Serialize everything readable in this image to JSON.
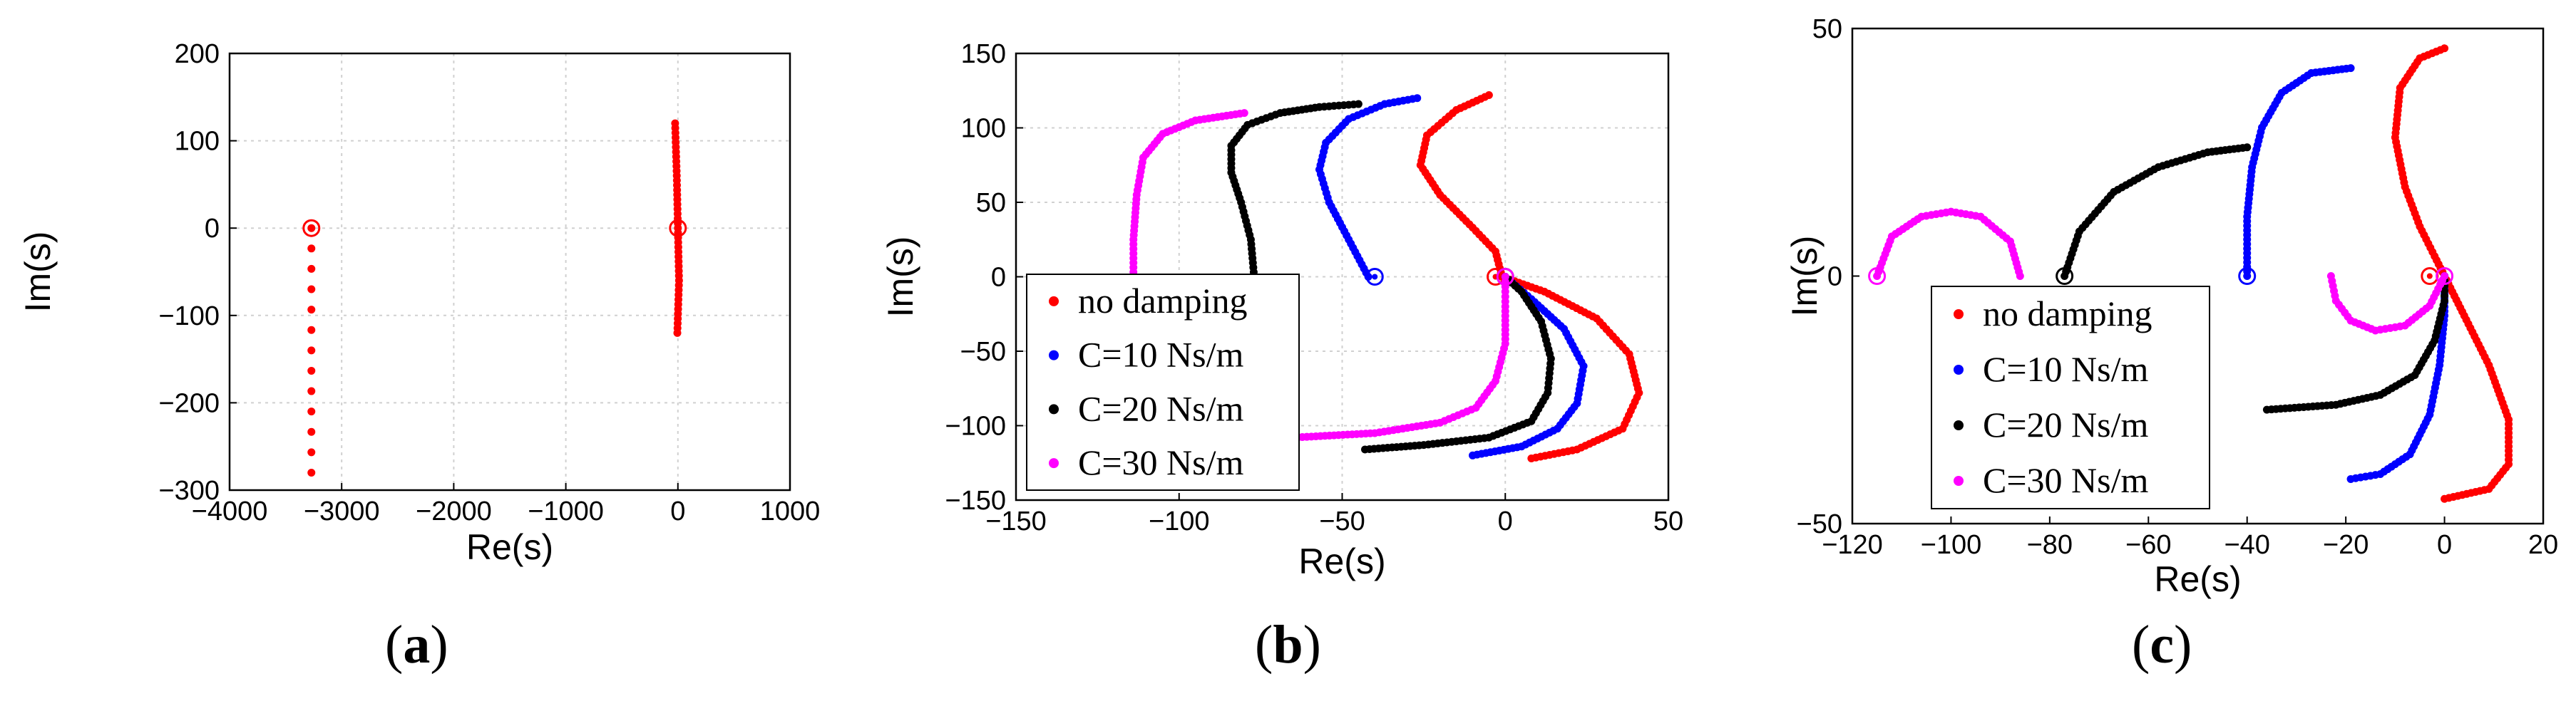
{
  "colors": {
    "red": "#ff0000",
    "blue": "#0000ff",
    "black": "#000000",
    "magenta": "#ff00ff",
    "grid": "#d0d0d0"
  },
  "labels": {
    "a": "a",
    "b": "b",
    "c": "c"
  },
  "chart_data": [
    {
      "id": "a",
      "type": "scatter",
      "xlabel": "Re(s)",
      "ylabel": "Im(s)",
      "xlim": [
        -4000,
        1000
      ],
      "ylim": [
        -300,
        200
      ],
      "xticks": [
        -4000,
        -3000,
        -2000,
        -1000,
        0,
        1000
      ],
      "yticks": [
        -300,
        -200,
        -100,
        0,
        100,
        200
      ],
      "xtick_labels": [
        "−4000",
        "−3000",
        "−2000",
        "−1000",
        "0",
        "1000"
      ],
      "ytick_labels": [
        "−300",
        "−200",
        "−100",
        "0",
        "100",
        "200"
      ],
      "grid": true,
      "legend": null,
      "series": [
        {
          "name": "no damping",
          "color": "red",
          "paths": [
            [
              [
                -3270,
                -280
              ],
              [
                -3270,
                0
              ]
            ],
            [
              [
                -25,
                120
              ],
              [
                -10,
                60
              ],
              [
                0,
                0
              ],
              [
                10,
                -60
              ],
              [
                -5,
                -120
              ]
            ]
          ],
          "markers": [
            [
              -3270,
              0
            ],
            [
              0,
              0
            ]
          ]
        }
      ]
    },
    {
      "id": "b",
      "type": "scatter",
      "xlabel": "Re(s)",
      "ylabel": "Im(s)",
      "xlim": [
        -150,
        50
      ],
      "ylim": [
        -150,
        150
      ],
      "xticks": [
        -150,
        -100,
        -50,
        0,
        50
      ],
      "yticks": [
        -150,
        -100,
        -50,
        0,
        50,
        100,
        150
      ],
      "xtick_labels": [
        "−150",
        "−100",
        "−50",
        "0",
        "50"
      ],
      "ytick_labels": [
        "−150",
        "−100",
        "−50",
        "0",
        "50",
        "100",
        "150"
      ],
      "grid": true,
      "legend": "bottom-left",
      "series": [
        {
          "name": "no damping",
          "color": "red",
          "paths": [
            [
              [
                -5,
                122
              ],
              [
                -15,
                112
              ],
              [
                -24,
                95
              ],
              [
                -26,
                75
              ],
              [
                -20,
                55
              ],
              [
                -10,
                33
              ],
              [
                -3,
                17
              ],
              [
                -1,
                0
              ]
            ],
            [
              [
                -1,
                0
              ],
              [
                12,
                -10
              ],
              [
                28,
                -28
              ],
              [
                38,
                -52
              ],
              [
                41,
                -78
              ],
              [
                36,
                -102
              ],
              [
                22,
                -116
              ],
              [
                8,
                -122
              ]
            ]
          ],
          "markers": [
            [
              -3,
              0
            ]
          ]
        },
        {
          "name": "C=10 Ns/m",
          "color": "blue",
          "paths": [
            [
              [
                -27,
                120
              ],
              [
                -37,
                116
              ],
              [
                -48,
                106
              ],
              [
                -55,
                90
              ],
              [
                -57,
                72
              ],
              [
                -54,
                50
              ],
              [
                -48,
                25
              ],
              [
                -42,
                0
              ]
            ],
            [
              [
                0,
                0
              ],
              [
                8,
                -15
              ],
              [
                18,
                -35
              ],
              [
                24,
                -60
              ],
              [
                22,
                -85
              ],
              [
                16,
                -102
              ],
              [
                5,
                -114
              ],
              [
                -10,
                -120
              ]
            ]
          ],
          "markers": [
            [
              -40,
              0
            ]
          ]
        },
        {
          "name": "C=20 Ns/m",
          "color": "black",
          "paths": [
            [
              [
                -45,
                116
              ],
              [
                -57,
                114
              ],
              [
                -69,
                110
              ],
              [
                -79,
                102
              ],
              [
                -84,
                88
              ],
              [
                -84,
                70
              ],
              [
                -81,
                50
              ],
              [
                -78,
                25
              ],
              [
                -77,
                0
              ]
            ],
            [
              [
                0,
                0
              ],
              [
                5,
                -10
              ],
              [
                11,
                -30
              ],
              [
                14,
                -55
              ],
              [
                13,
                -78
              ],
              [
                8,
                -97
              ],
              [
                -5,
                -108
              ],
              [
                -25,
                -113
              ],
              [
                -43,
                -116
              ]
            ]
          ],
          "markers": [
            [
              0,
              0
            ]
          ]
        },
        {
          "name": "C=30 Ns/m",
          "color": "magenta",
          "paths": [
            [
              [
                -80,
                110
              ],
              [
                -95,
                105
              ],
              [
                -105,
                96
              ],
              [
                -111,
                80
              ],
              [
                -113,
                55
              ],
              [
                -114,
                25
              ],
              [
                -114,
                0
              ]
            ],
            [
              [
                0,
                0
              ],
              [
                0,
                -20
              ],
              [
                0,
                -45
              ],
              [
                -3,
                -70
              ],
              [
                -9,
                -88
              ],
              [
                -20,
                -98
              ],
              [
                -40,
                -105
              ],
              [
                -65,
                -108
              ]
            ]
          ],
          "markers": [
            [
              0,
              0
            ]
          ]
        }
      ]
    },
    {
      "id": "c",
      "type": "scatter",
      "xlabel": "Re(s)",
      "ylabel": "Im(s)",
      "xlim": [
        -120,
        20
      ],
      "ylim": [
        -50,
        50
      ],
      "xticks": [
        -120,
        -100,
        -80,
        -60,
        -40,
        -20,
        0,
        20
      ],
      "yticks": [
        -50,
        0,
        50
      ],
      "xtick_labels": [
        "−120",
        "−100",
        "−80",
        "−60",
        "−40",
        "−20",
        "0",
        "20"
      ],
      "ytick_labels": [
        "−50",
        "0",
        "50"
      ],
      "grid": false,
      "legend": "bottom-left",
      "series": [
        {
          "name": "no damping",
          "color": "red",
          "paths": [
            [
              [
                0,
                46
              ],
              [
                -5,
                44
              ],
              [
                -9,
                38
              ],
              [
                -10,
                28
              ],
              [
                -8,
                18
              ],
              [
                -5,
                10
              ],
              [
                -2,
                4
              ],
              [
                0,
                0
              ]
            ],
            [
              [
                0,
                0
              ],
              [
                4,
                -8
              ],
              [
                9,
                -18
              ],
              [
                13,
                -29
              ],
              [
                13,
                -38
              ],
              [
                9,
                -43
              ],
              [
                0,
                -45
              ]
            ]
          ],
          "markers": [
            [
              -3,
              0
            ]
          ]
        },
        {
          "name": "C=10 Ns/m",
          "color": "blue",
          "paths": [
            [
              [
                -19,
                42
              ],
              [
                -27,
                41
              ],
              [
                -33,
                37
              ],
              [
                -37,
                30
              ],
              [
                -39,
                22
              ],
              [
                -40,
                12
              ],
              [
                -40,
                0
              ]
            ],
            [
              [
                0,
                0
              ],
              [
                0,
                -8
              ],
              [
                -1,
                -18
              ],
              [
                -3,
                -28
              ],
              [
                -7,
                -36
              ],
              [
                -13,
                -40
              ],
              [
                -19,
                -41
              ]
            ]
          ],
          "markers": [
            [
              -40,
              0
            ]
          ]
        },
        {
          "name": "C=20 Ns/m",
          "color": "black",
          "paths": [
            [
              [
                -77,
                0
              ],
              [
                -74,
                9
              ],
              [
                -67,
                17
              ],
              [
                -58,
                22
              ],
              [
                -48,
                25
              ],
              [
                -40,
                26
              ]
            ],
            [
              [
                0,
                0
              ],
              [
                0,
                -5
              ],
              [
                -2,
                -13
              ],
              [
                -6,
                -20
              ],
              [
                -13,
                -24
              ],
              [
                -22,
                -26
              ],
              [
                -36,
                -27
              ]
            ]
          ],
          "markers": [
            [
              -77,
              0
            ]
          ]
        },
        {
          "name": "C=30 Ns/m",
          "color": "magenta",
          "paths": [
            [
              [
                -115,
                0
              ],
              [
                -112,
                8
              ],
              [
                -106,
                12
              ],
              [
                -100,
                13
              ],
              [
                -94,
                12
              ],
              [
                -88,
                7
              ],
              [
                -86,
                0
              ]
            ],
            [
              [
                0,
                0
              ],
              [
                -3,
                -6
              ],
              [
                -8,
                -10
              ],
              [
                -14,
                -11
              ],
              [
                -19,
                -9
              ],
              [
                -22,
                -5
              ],
              [
                -23,
                0
              ]
            ]
          ],
          "markers": [
            [
              -115,
              0
            ],
            [
              0,
              0
            ]
          ]
        }
      ]
    }
  ]
}
